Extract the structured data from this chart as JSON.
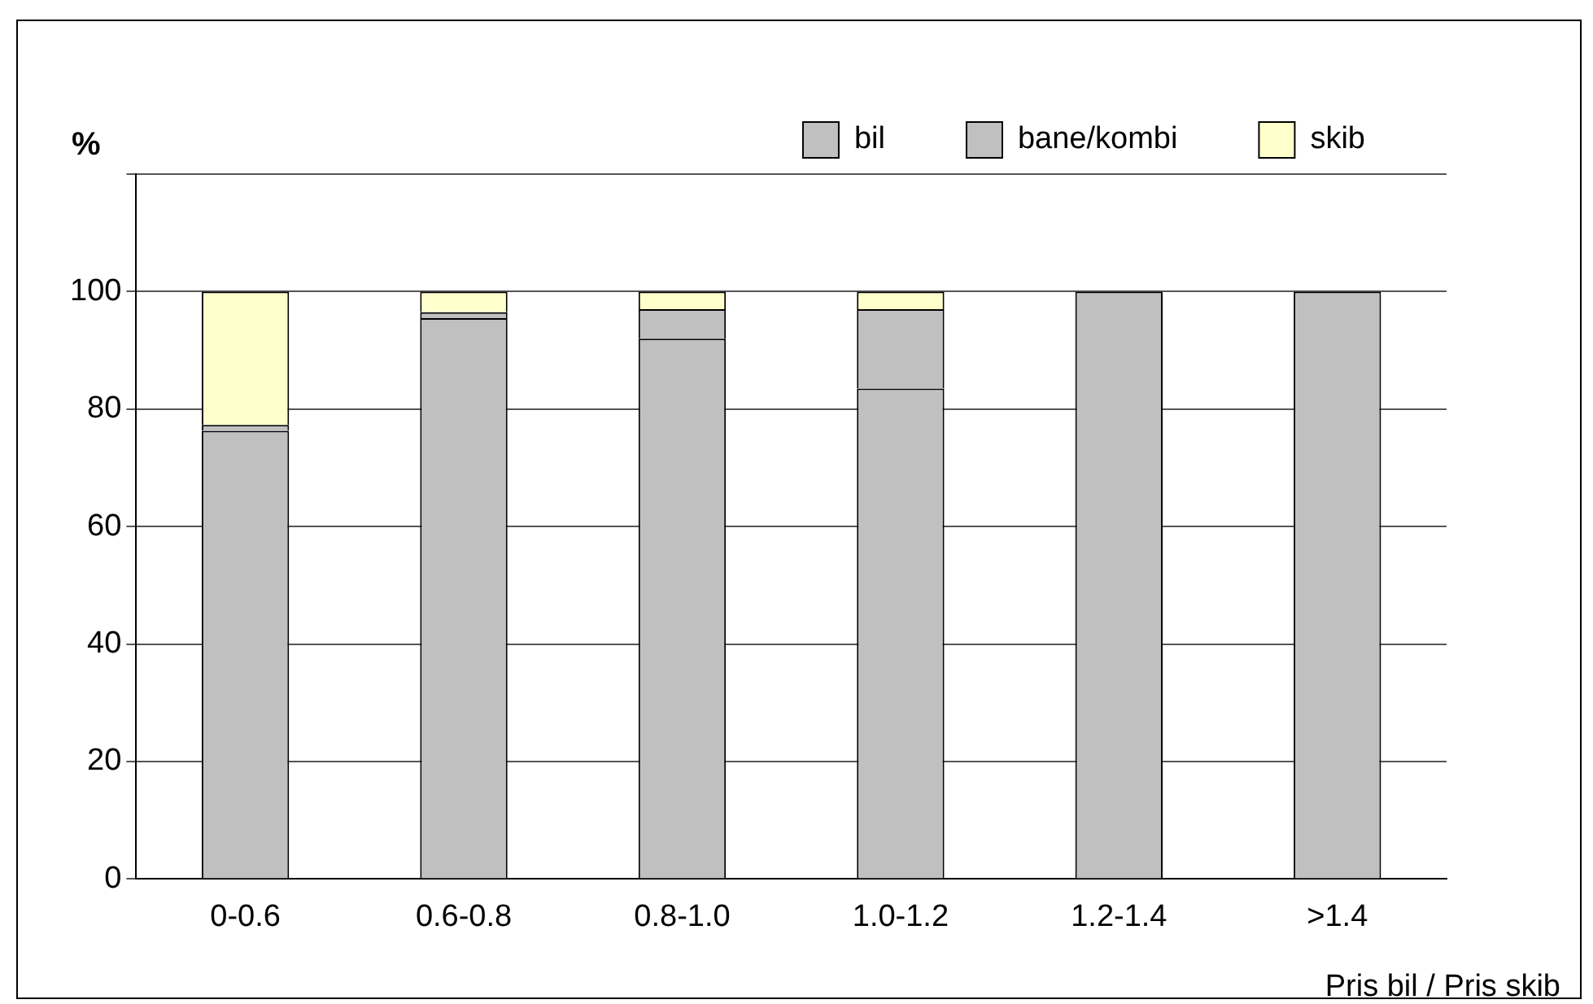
{
  "chart_data": {
    "type": "bar",
    "stacked": true,
    "ylabel": "%",
    "xlabel": "Pris bil / Pris skib",
    "categories": [
      "0-0.6",
      "0.6-0.8",
      "0.8-1.0",
      "1.0-1.2",
      "1.2-1.4",
      ">1.4"
    ],
    "series": [
      {
        "name": "bil",
        "color": "#c0c0c0",
        "values": [
          76.3,
          95.5,
          92,
          83.5,
          100,
          100
        ]
      },
      {
        "name": "bane/kombi",
        "color": "#c0c0c0",
        "values": [
          1,
          1,
          5,
          13.5,
          0,
          0
        ]
      },
      {
        "name": "skib",
        "color": "#ffffcc",
        "values": [
          22.7,
          3.5,
          3,
          3,
          0,
          0
        ]
      }
    ],
    "ylim": [
      0,
      120
    ],
    "yticks": [
      0,
      20,
      40,
      60,
      80,
      100,
      {
        "value": 120,
        "label": null
      }
    ],
    "grid": "y",
    "legend": "top right"
  }
}
